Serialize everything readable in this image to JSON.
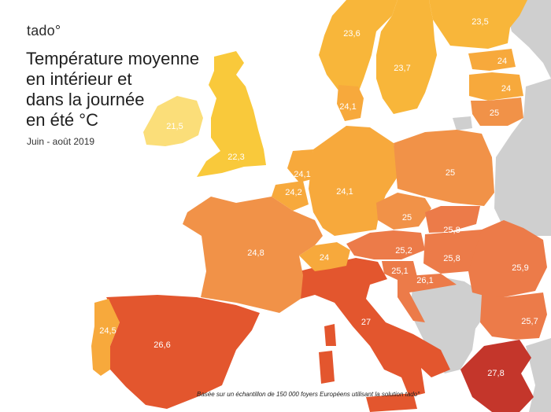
{
  "brand": {
    "logo_text": "tado°"
  },
  "title_lines": [
    "Température moyenne",
    "en intérieur et",
    "dans la journée",
    "en été °C"
  ],
  "subtitle": "Juin - août 2019",
  "footnote": "Basée sur un échantillon de 150 000 foyers Européens utilisant la solution tado°",
  "colors": {
    "sea": "#ffffff",
    "no_data": "#cfcfcf",
    "t21_5": "#fbde79",
    "t22_3": "#f9c93b",
    "t23_5": "#f8b63a",
    "t24": "#f7a93c",
    "t25": "#f19248",
    "t25_8": "#ec7b49",
    "t26_5": "#e3562e",
    "t27_8": "#c4362b"
  },
  "regions": [
    {
      "id": "ireland",
      "value": "21,5"
    },
    {
      "id": "uk",
      "value": "22,3"
    },
    {
      "id": "norway",
      "value": "23,6"
    },
    {
      "id": "sweden",
      "value": "23,7"
    },
    {
      "id": "finland",
      "value": "23,5"
    },
    {
      "id": "estonia",
      "value": "24"
    },
    {
      "id": "latvia",
      "value": "24"
    },
    {
      "id": "lithuania",
      "value": "25"
    },
    {
      "id": "denmark",
      "value": "24,1"
    },
    {
      "id": "netherlands",
      "value": "24,1"
    },
    {
      "id": "belgium",
      "value": "24,2"
    },
    {
      "id": "germany",
      "value": "24,1"
    },
    {
      "id": "poland",
      "value": "25"
    },
    {
      "id": "czechia",
      "value": "25"
    },
    {
      "id": "slovakia",
      "value": "25,8"
    },
    {
      "id": "austria",
      "value": "25,2"
    },
    {
      "id": "hungary",
      "value": "25,8"
    },
    {
      "id": "slovenia",
      "value": "25,1"
    },
    {
      "id": "croatia",
      "value": "26,1"
    },
    {
      "id": "romania",
      "value": "25,9"
    },
    {
      "id": "bulgaria",
      "value": "25,7"
    },
    {
      "id": "greece",
      "value": "27,8"
    },
    {
      "id": "italy",
      "value": "27"
    },
    {
      "id": "switzerland",
      "value": "24"
    },
    {
      "id": "france",
      "value": "24,8"
    },
    {
      "id": "spain",
      "value": "26,6"
    },
    {
      "id": "portugal",
      "value": "24,5"
    }
  ]
}
